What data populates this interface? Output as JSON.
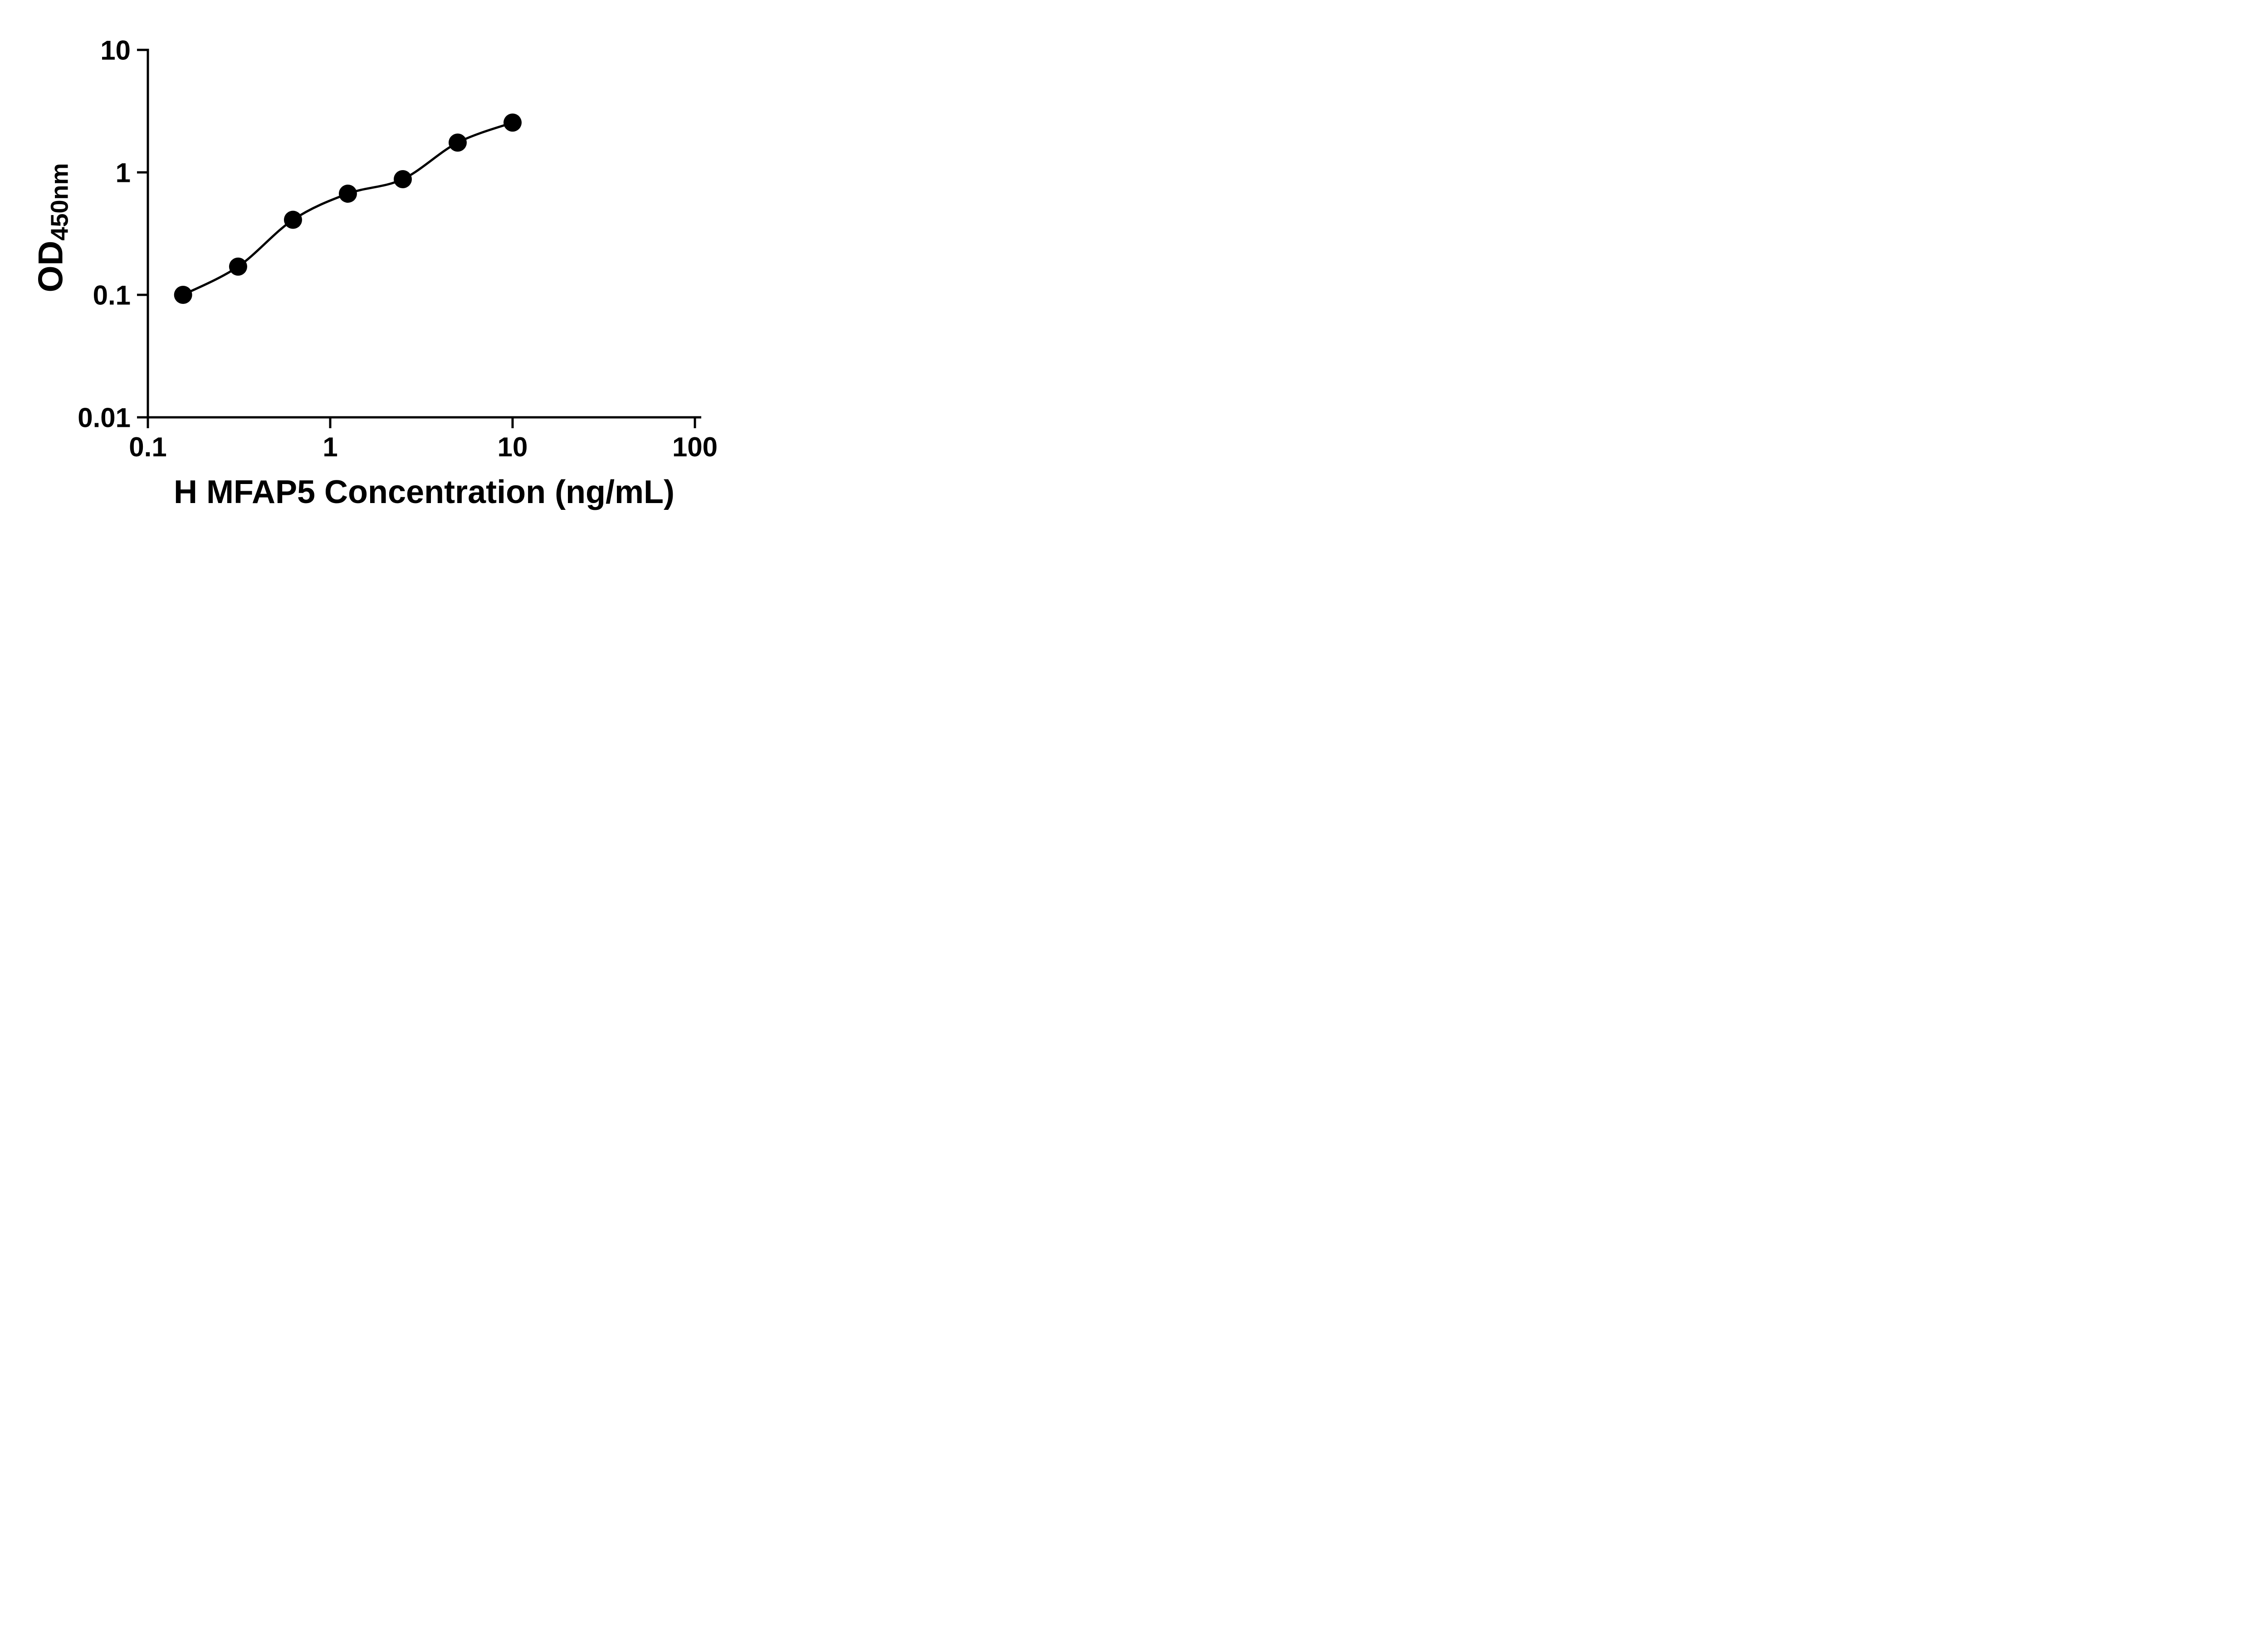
{
  "figure": {
    "background": "#ffffff"
  },
  "chart_data": {
    "type": "scatter",
    "title": "",
    "xlabel": "H MFAP5 Concentration (ng/mL)",
    "ylabel_main": "OD",
    "ylabel_sub": "450nm",
    "x_scale": "log",
    "y_scale": "log",
    "xlim": [
      0.1,
      100
    ],
    "ylim": [
      0.01,
      10
    ],
    "x": [
      0.156,
      0.3125,
      0.625,
      1.25,
      2.5,
      5,
      10
    ],
    "y": [
      0.1,
      0.17,
      0.41,
      0.67,
      0.88,
      1.75,
      2.55
    ],
    "x_ticks": [
      0.1,
      1,
      10,
      100
    ],
    "x_tick_labels": [
      "0.1",
      "1",
      "10",
      "100"
    ],
    "y_ticks": [
      0.01,
      0.1,
      1,
      10
    ],
    "y_tick_labels": [
      "0.01",
      "0.1",
      "1",
      "10"
    ],
    "grid": false,
    "legend": "none",
    "has_trend_line": true,
    "marker_color": "#000000",
    "line_color": "#000000",
    "axis_color": "#000000"
  }
}
